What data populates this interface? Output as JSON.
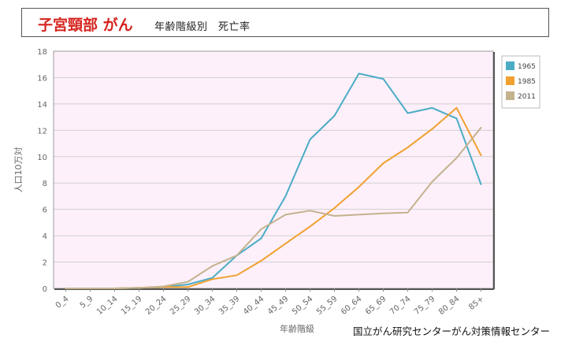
{
  "header": {
    "title": "子宮頸部 がん",
    "subtitle": "年齢階級別　死亡率"
  },
  "source": "国立がん研究センターがん対策情報センター",
  "chart_data": {
    "type": "line",
    "title": "",
    "xlabel": "年齢階級",
    "ylabel": "人口10万対",
    "ylim": [
      0,
      18
    ],
    "yticks": [
      0,
      2,
      4,
      6,
      8,
      10,
      12,
      14,
      16,
      18
    ],
    "grid": true,
    "legend_position": "right",
    "categories": [
      "0_4",
      "5_9",
      "10_14",
      "15_19",
      "20_24",
      "25_29",
      "30_34",
      "35_39",
      "40_44",
      "45_49",
      "50_54",
      "55_59",
      "60_64",
      "65_69",
      "70_74",
      "75_79",
      "80_84",
      "85+"
    ],
    "series": [
      {
        "name": "1965",
        "color": "#4bacc6",
        "values": [
          0,
          0,
          0,
          0.05,
          0.1,
          0.3,
          0.8,
          2.5,
          3.8,
          7.0,
          11.3,
          13.1,
          16.3,
          15.9,
          13.3,
          13.7,
          12.9,
          7.9
        ]
      },
      {
        "name": "1985",
        "color": "#f0a030",
        "values": [
          0,
          0,
          0,
          0.05,
          0.1,
          0.1,
          0.7,
          1.0,
          2.1,
          3.4,
          4.7,
          6.1,
          7.7,
          9.5,
          10.7,
          12.1,
          13.7,
          10.1
        ]
      },
      {
        "name": "2011",
        "color": "#c4b28e",
        "values": [
          0,
          0,
          0,
          0.05,
          0.15,
          0.5,
          1.7,
          2.5,
          4.5,
          5.6,
          5.9,
          5.5,
          5.6,
          5.7,
          5.75,
          8.1,
          9.9,
          12.2
        ]
      }
    ]
  }
}
